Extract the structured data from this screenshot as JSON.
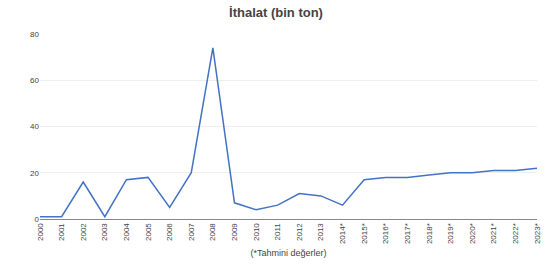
{
  "chart_data": {
    "type": "line",
    "title": "İthalat (bin ton)",
    "categories": [
      "2000",
      "2001",
      "2002",
      "2003",
      "2004",
      "2005",
      "2006",
      "2007",
      "2008",
      "2009",
      "2010",
      "2011",
      "2012",
      "2013",
      "2014*",
      "2015*",
      "2016*",
      "2017*",
      "2018*",
      "2019*",
      "2020*",
      "2021*",
      "2022*",
      "2023*"
    ],
    "values": [
      1,
      1,
      16,
      1,
      17,
      18,
      5,
      20,
      74,
      7,
      4,
      6,
      11,
      10,
      6,
      17,
      18,
      18,
      19,
      20,
      20,
      21,
      21,
      22
    ],
    "color": "#4472C4",
    "ylim": [
      0,
      80
    ],
    "yticks": [
      0,
      20,
      40,
      60,
      80
    ],
    "grid": true,
    "xlabel": "(*Tahmini değerler)"
  }
}
